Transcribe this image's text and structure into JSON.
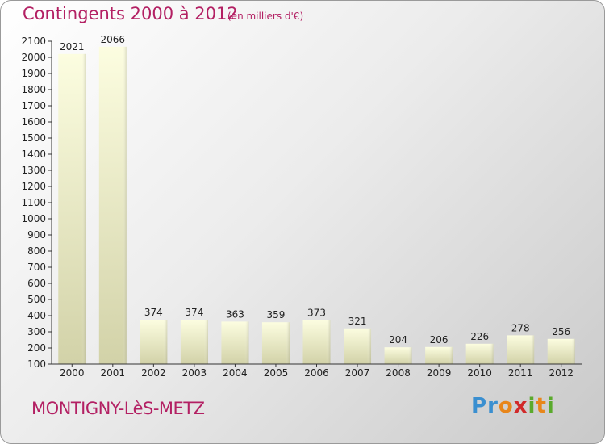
{
  "header": {
    "title": "Contingents 2000 à 2012",
    "subtitle": "(en milliers d'€)"
  },
  "footer": {
    "place": "MONTIGNY-LèS-METZ",
    "logo": "Proxiti"
  },
  "colors": {
    "title": "#b32063",
    "bar_light": "#fafbd6",
    "bar_dark": "#d6d6b0",
    "axis": "#333333"
  },
  "chart_data": {
    "type": "bar",
    "title": "Contingents 2000 à 2012",
    "subtitle": "(en milliers d'€)",
    "categories": [
      "2000",
      "2001",
      "2002",
      "2003",
      "2004",
      "2005",
      "2006",
      "2007",
      "2008",
      "2009",
      "2010",
      "2011",
      "2012"
    ],
    "values": [
      2021,
      2066,
      374,
      374,
      363,
      359,
      373,
      321,
      204,
      206,
      226,
      278,
      256
    ],
    "ylim": [
      100,
      2100
    ],
    "yticks": [
      100,
      200,
      300,
      400,
      500,
      600,
      700,
      800,
      900,
      1000,
      1100,
      1200,
      1300,
      1400,
      1500,
      1600,
      1700,
      1800,
      1900,
      2000,
      2100
    ],
    "grid": false,
    "xlabel": "",
    "ylabel": ""
  }
}
